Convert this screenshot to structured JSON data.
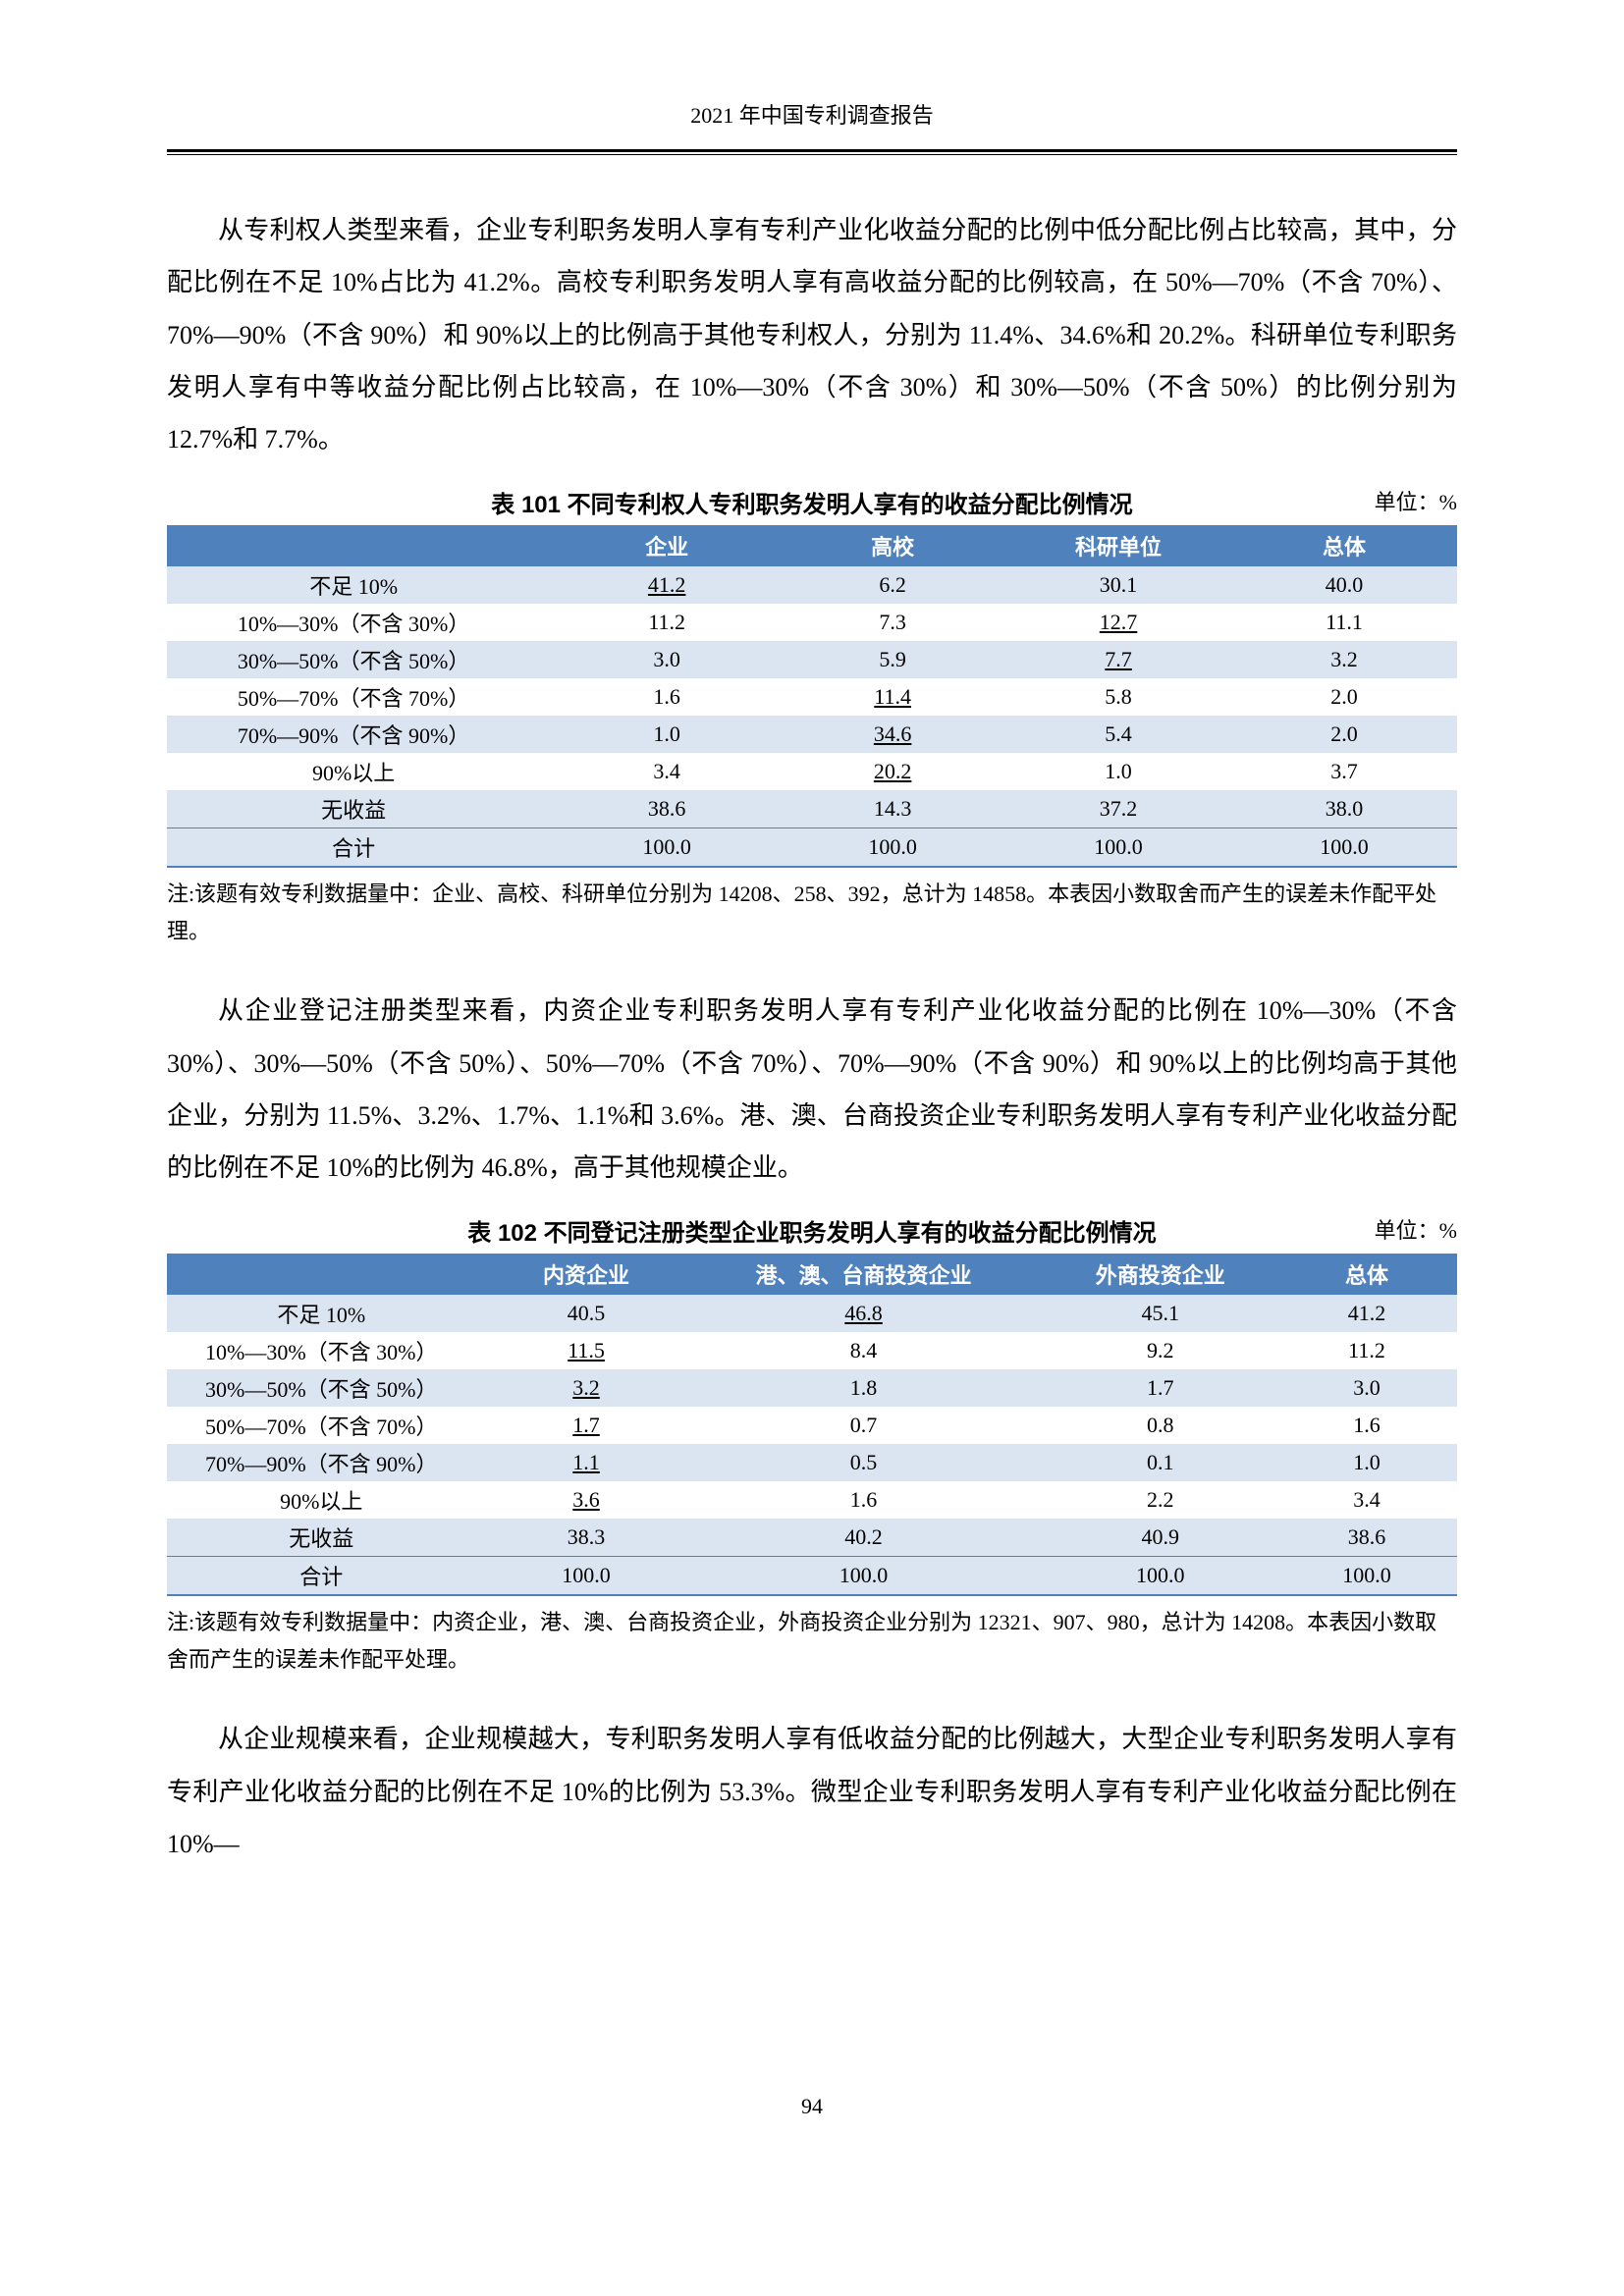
{
  "header": {
    "title": "2021 年中国专利调查报告"
  },
  "paragraphs": {
    "p1": "从专利权人类型来看，企业专利职务发明人享有专利产业化收益分配的比例中低分配比例占比较高，其中，分配比例在不足 10%占比为 41.2%。高校专利职务发明人享有高收益分配的比例较高，在 50%—70%（不含 70%）、70%—90%（不含 90%）和 90%以上的比例高于其他专利权人，分别为 11.4%、34.6%和 20.2%。科研单位专利职务发明人享有中等收益分配比例占比较高，在 10%—30%（不含 30%）和 30%—50%（不含 50%）的比例分别为 12.7%和 7.7%。",
    "p2": "从企业登记注册类型来看，内资企业专利职务发明人享有专利产业化收益分配的比例在 10%—30%（不含 30%）、30%—50%（不含 50%）、50%—70%（不含 70%）、70%—90%（不含 90%）和 90%以上的比例均高于其他企业，分别为 11.5%、3.2%、1.7%、1.1%和 3.6%。港、澳、台商投资企业专利职务发明人享有专利产业化收益分配的比例在不足 10%的比例为 46.8%，高于其他规模企业。",
    "p3": "从企业规模来看，企业规模越大，专利职务发明人享有低收益分配的比例越大，大型企业专利职务发明人享有专利产业化收益分配的比例在不足 10%的比例为 53.3%。微型企业专利职务发明人享有专利产业化收益分配比例在 10%—"
  },
  "table101": {
    "title": "表 101  不同专利权人专利职务发明人享有的收益分配比例情况",
    "unit": "单位：%",
    "columns": [
      "",
      "企业",
      "高校",
      "科研单位",
      "总体"
    ],
    "rows": [
      {
        "label": "不足 10%",
        "cells": [
          {
            "v": "41.2",
            "u": true
          },
          {
            "v": "6.2"
          },
          {
            "v": "30.1"
          },
          {
            "v": "40.0"
          }
        ],
        "striped": true
      },
      {
        "label": "10%—30%（不含 30%）",
        "cells": [
          {
            "v": "11.2"
          },
          {
            "v": "7.3"
          },
          {
            "v": "12.7",
            "u": true
          },
          {
            "v": "11.1"
          }
        ],
        "striped": false
      },
      {
        "label": "30%—50%（不含 50%）",
        "cells": [
          {
            "v": "3.0"
          },
          {
            "v": "5.9"
          },
          {
            "v": "7.7",
            "u": true
          },
          {
            "v": "3.2"
          }
        ],
        "striped": true
      },
      {
        "label": "50%—70%（不含 70%）",
        "cells": [
          {
            "v": "1.6"
          },
          {
            "v": "11.4",
            "u": true
          },
          {
            "v": "5.8"
          },
          {
            "v": "2.0"
          }
        ],
        "striped": false
      },
      {
        "label": "70%—90%（不含 90%）",
        "cells": [
          {
            "v": "1.0"
          },
          {
            "v": "34.6",
            "u": true
          },
          {
            "v": "5.4"
          },
          {
            "v": "2.0"
          }
        ],
        "striped": true
      },
      {
        "label": "90%以上",
        "cells": [
          {
            "v": "3.4"
          },
          {
            "v": "20.2",
            "u": true
          },
          {
            "v": "1.0"
          },
          {
            "v": "3.7"
          }
        ],
        "striped": false
      },
      {
        "label": "无收益",
        "cells": [
          {
            "v": "38.6"
          },
          {
            "v": "14.3"
          },
          {
            "v": "37.2"
          },
          {
            "v": "38.0"
          }
        ],
        "striped": true
      }
    ],
    "footer": {
      "label": "合计",
      "cells": [
        "100.0",
        "100.0",
        "100.0",
        "100.0"
      ]
    },
    "note": "注:该题有效专利数据量中：企业、高校、科研单位分别为 14208、258、392，总计为 14858。本表因小数取舍而产生的误差未作配平处理。",
    "colWidths": [
      "30%",
      "17.5%",
      "17.5%",
      "17.5%",
      "17.5%"
    ]
  },
  "table102": {
    "title": "表 102  不同登记注册类型企业职务发明人享有的收益分配比例情况",
    "unit": "单位：%",
    "columns": [
      "",
      "内资企业",
      "港、澳、台商投资企业",
      "外商投资企业",
      "总体"
    ],
    "rows": [
      {
        "label": "不足 10%",
        "cells": [
          {
            "v": "40.5"
          },
          {
            "v": "46.8",
            "u": true
          },
          {
            "v": "45.1"
          },
          {
            "v": "41.2"
          }
        ],
        "striped": true
      },
      {
        "label": "10%—30%（不含 30%）",
        "cells": [
          {
            "v": "11.5",
            "u": true
          },
          {
            "v": "8.4"
          },
          {
            "v": "9.2"
          },
          {
            "v": "11.2"
          }
        ],
        "striped": false
      },
      {
        "label": "30%—50%（不含 50%）",
        "cells": [
          {
            "v": "3.2",
            "u": true
          },
          {
            "v": "1.8"
          },
          {
            "v": "1.7"
          },
          {
            "v": "3.0"
          }
        ],
        "striped": true
      },
      {
        "label": "50%—70%（不含 70%）",
        "cells": [
          {
            "v": "1.7",
            "u": true
          },
          {
            "v": "0.7"
          },
          {
            "v": "0.8"
          },
          {
            "v": "1.6"
          }
        ],
        "striped": false
      },
      {
        "label": "70%—90%（不含 90%）",
        "cells": [
          {
            "v": "1.1",
            "u": true
          },
          {
            "v": "0.5"
          },
          {
            "v": "0.1"
          },
          {
            "v": "1.0"
          }
        ],
        "striped": true
      },
      {
        "label": "90%以上",
        "cells": [
          {
            "v": "3.6",
            "u": true
          },
          {
            "v": "1.6"
          },
          {
            "v": "2.2"
          },
          {
            "v": "3.4"
          }
        ],
        "striped": false
      },
      {
        "label": "无收益",
        "cells": [
          {
            "v": "38.3"
          },
          {
            "v": "40.2"
          },
          {
            "v": "40.9"
          },
          {
            "v": "38.6"
          }
        ],
        "striped": true
      }
    ],
    "footer": {
      "label": "合计",
      "cells": [
        "100.0",
        "100.0",
        "100.0",
        "100.0"
      ]
    },
    "note": "注:该题有效专利数据量中：内资企业，港、澳、台商投资企业，外商投资企业分别为 12321、907、980，总计为 14208。本表因小数取舍而产生的误差未作配平处理。",
    "colWidths": [
      "25%",
      "15%",
      "28%",
      "18%",
      "14%"
    ]
  },
  "pageNumber": "94",
  "style": {
    "headerBg": "#4f81bd",
    "stripeBg": "#dbe5f1",
    "fontColor": "#000000",
    "bodyBg": "#ffffff"
  }
}
